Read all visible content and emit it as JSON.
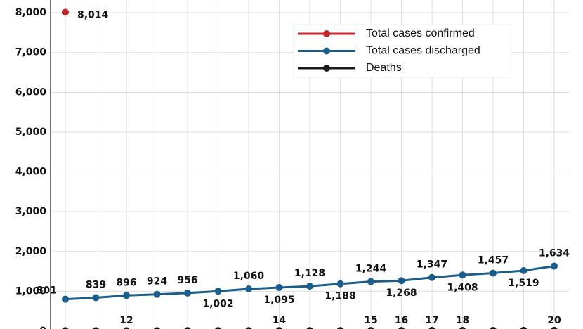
{
  "chart_data": {
    "type": "line",
    "ylim": [
      0,
      8320
    ],
    "yticks": [
      0,
      {
        "value": 1000,
        "label": "1,000"
      },
      {
        "value": 2000,
        "label": "2,000"
      },
      {
        "value": 3000,
        "label": "3,000"
      },
      {
        "value": 4000,
        "label": "4,000"
      },
      {
        "value": 5000,
        "label": "5,000"
      },
      {
        "value": 6000,
        "label": "6,000"
      },
      {
        "value": 7000,
        "label": "7,000"
      },
      {
        "value": 8000,
        "label": "8,000"
      }
    ],
    "grid": true,
    "legend": "top-right",
    "series": [
      {
        "name": "Total cases confirmed",
        "color": "#c1272d",
        "values": [
          8014,
          null,
          null,
          null,
          null,
          null,
          null,
          null,
          null,
          null,
          null,
          null,
          null,
          null,
          null,
          null,
          null
        ],
        "value_labels": [
          "8,014",
          null,
          null,
          null,
          null,
          null,
          null,
          null,
          null,
          null,
          null,
          null,
          null,
          null,
          null,
          null,
          null
        ]
      },
      {
        "name": "Total cases discharged",
        "color": "#1b5e8c",
        "values": [
          801,
          839,
          896,
          924,
          956,
          1002,
          1060,
          1095,
          1128,
          1188,
          1244,
          1268,
          1347,
          1408,
          1457,
          1519,
          1634
        ],
        "value_labels": [
          "801",
          "839",
          "896",
          "924",
          "956",
          "1,002",
          "1,060",
          "1,095",
          "1,128",
          "1,188",
          "1,244",
          "1,268",
          "1,347",
          "1,408",
          "1,457",
          "1,519",
          "1,634"
        ]
      },
      {
        "name": "Deaths",
        "color": "#1a1a1a",
        "values": [
          10,
          11,
          12,
          12,
          13,
          13,
          13,
          14,
          14,
          14,
          15,
          16,
          17,
          18,
          18,
          19,
          20
        ],
        "value_labels": [
          null,
          null,
          "12",
          null,
          null,
          null,
          null,
          "14",
          null,
          null,
          "15",
          "16",
          "17",
          "18",
          null,
          null,
          "20"
        ]
      }
    ]
  }
}
